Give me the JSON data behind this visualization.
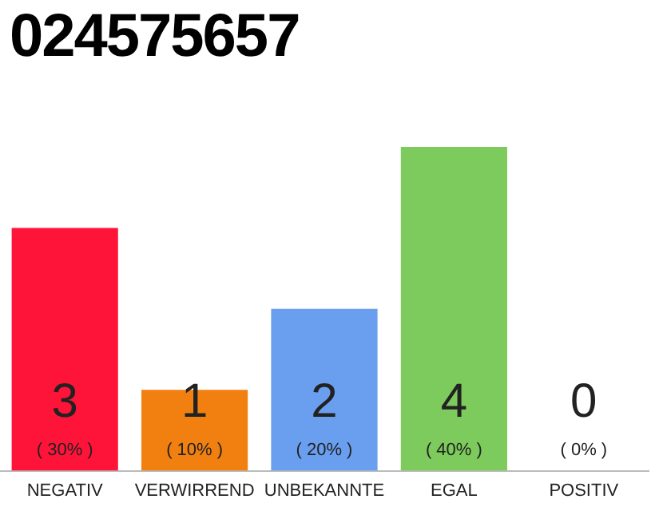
{
  "chart_data": {
    "type": "bar",
    "title": "024575657",
    "categories": [
      "NEGATIV",
      "VERWIRREND",
      "UNBEKANNTE",
      "EGAL",
      "POSITIV"
    ],
    "values": [
      3,
      1,
      2,
      4,
      0
    ],
    "colors": [
      "#ff1439",
      "#f28011",
      "#6a9ff0",
      "#7dcb5c",
      "#cccccc"
    ],
    "value_labels": [
      "3\n( 30% )",
      "1\n( 10% )",
      "2\n( 20% )",
      "4\n( 40% )",
      "0\n( 0% )"
    ],
    "ylim": [
      0,
      4
    ],
    "tick_labels": "x",
    "grid": false,
    "legend": false
  }
}
